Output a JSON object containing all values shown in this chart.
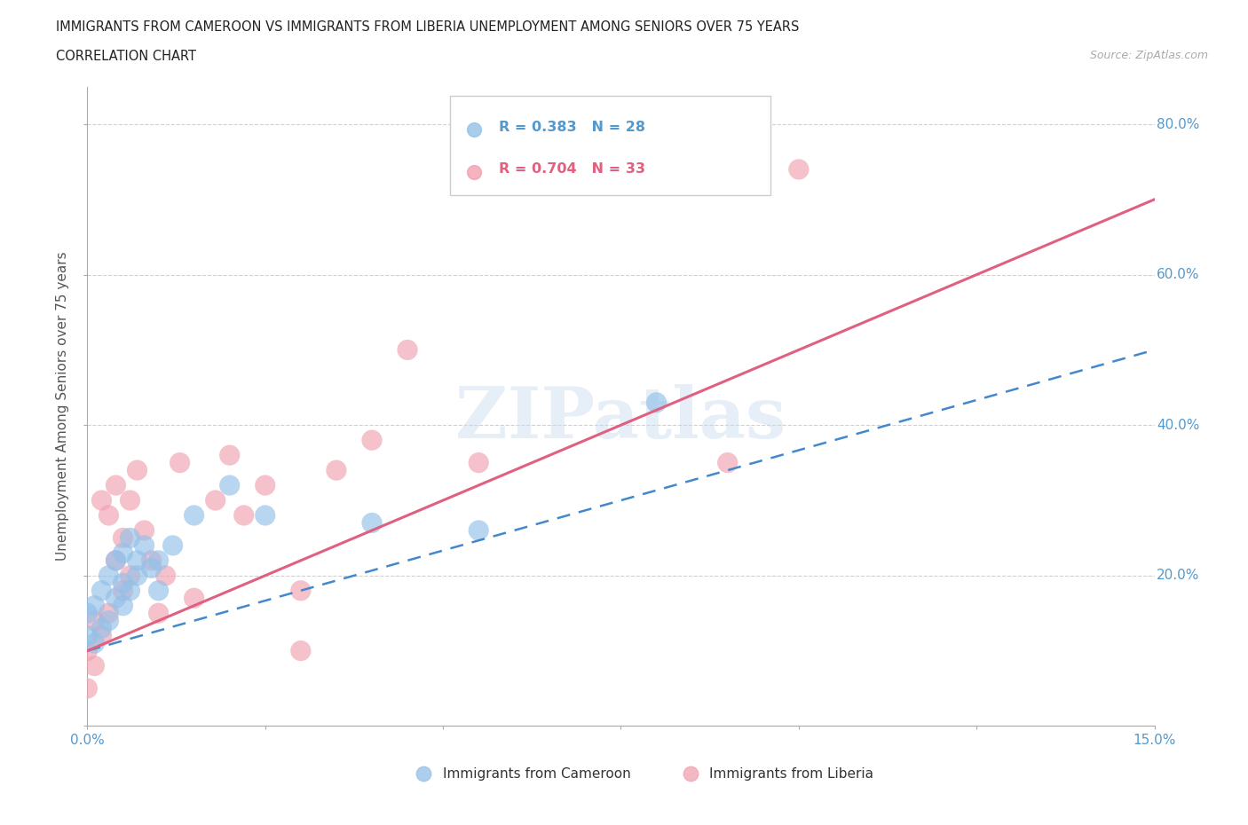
{
  "title_line1": "IMMIGRANTS FROM CAMEROON VS IMMIGRANTS FROM LIBERIA UNEMPLOYMENT AMONG SENIORS OVER 75 YEARS",
  "title_line2": "CORRELATION CHART",
  "source": "Source: ZipAtlas.com",
  "ylabel": "Unemployment Among Seniors over 75 years",
  "xlim": [
    0.0,
    0.15
  ],
  "ylim": [
    0.0,
    0.85
  ],
  "cameroon_color": "#92c0e8",
  "cameroon_line_color": "#4488cc",
  "liberia_color": "#f0a0b0",
  "liberia_line_color": "#e06080",
  "cameroon_R": 0.383,
  "cameroon_N": 28,
  "liberia_R": 0.704,
  "liberia_N": 33,
  "tick_color": "#5599cc",
  "grid_color": "#cccccc",
  "background_color": "#ffffff",
  "watermark": "ZIPatlas",
  "legend_label_cam": "Immigrants from Cameroon",
  "legend_label_lib": "Immigrants from Liberia",
  "cam_line_x0": 0.0,
  "cam_line_y0": 0.1,
  "cam_line_x1": 0.15,
  "cam_line_y1": 0.5,
  "lib_line_x0": 0.0,
  "lib_line_y0": 0.1,
  "lib_line_x1": 0.15,
  "lib_line_y1": 0.7,
  "cameroon_scatter_x": [
    0.0,
    0.0,
    0.001,
    0.001,
    0.002,
    0.002,
    0.003,
    0.003,
    0.004,
    0.004,
    0.005,
    0.005,
    0.005,
    0.006,
    0.006,
    0.007,
    0.007,
    0.008,
    0.009,
    0.01,
    0.01,
    0.012,
    0.015,
    0.02,
    0.025,
    0.04,
    0.055,
    0.08
  ],
  "cameroon_scatter_y": [
    0.12,
    0.15,
    0.11,
    0.16,
    0.13,
    0.18,
    0.14,
    0.2,
    0.17,
    0.22,
    0.16,
    0.19,
    0.23,
    0.18,
    0.25,
    0.2,
    0.22,
    0.24,
    0.21,
    0.22,
    0.18,
    0.24,
    0.28,
    0.32,
    0.28,
    0.27,
    0.26,
    0.43
  ],
  "liberia_scatter_x": [
    0.0,
    0.0,
    0.001,
    0.001,
    0.002,
    0.002,
    0.003,
    0.003,
    0.004,
    0.004,
    0.005,
    0.005,
    0.006,
    0.006,
    0.007,
    0.008,
    0.009,
    0.01,
    0.011,
    0.013,
    0.015,
    0.018,
    0.02,
    0.022,
    0.025,
    0.03,
    0.03,
    0.035,
    0.04,
    0.045,
    0.055,
    0.09,
    0.1
  ],
  "liberia_scatter_y": [
    0.05,
    0.1,
    0.08,
    0.14,
    0.12,
    0.3,
    0.15,
    0.28,
    0.22,
    0.32,
    0.18,
    0.25,
    0.2,
    0.3,
    0.34,
    0.26,
    0.22,
    0.15,
    0.2,
    0.35,
    0.17,
    0.3,
    0.36,
    0.28,
    0.32,
    0.1,
    0.18,
    0.34,
    0.38,
    0.5,
    0.35,
    0.35,
    0.74
  ]
}
